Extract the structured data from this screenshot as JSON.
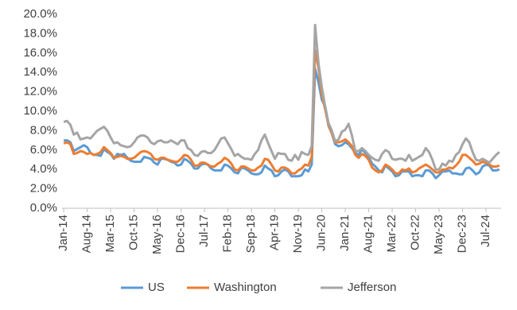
{
  "chart_data": {
    "type": "line",
    "categories": [
      "Jan-14",
      null,
      null,
      null,
      null,
      null,
      null,
      "Aug-14",
      null,
      null,
      null,
      null,
      null,
      null,
      "Mar-15",
      null,
      null,
      null,
      null,
      null,
      null,
      "Oct-15",
      null,
      null,
      null,
      null,
      null,
      null,
      "May-16",
      null,
      null,
      null,
      null,
      null,
      null,
      "Dec-16",
      null,
      null,
      null,
      null,
      null,
      null,
      "Jul-17",
      null,
      null,
      null,
      null,
      null,
      null,
      "Feb-18",
      null,
      null,
      null,
      null,
      null,
      null,
      "Sep-18",
      null,
      null,
      null,
      null,
      null,
      null,
      "Apr-19",
      null,
      null,
      null,
      null,
      null,
      null,
      "Nov-19",
      null,
      null,
      null,
      null,
      null,
      null,
      "Jun-20",
      null,
      null,
      null,
      null,
      null,
      null,
      "Jan-21",
      null,
      null,
      null,
      null,
      null,
      null,
      "Aug-21",
      null,
      null,
      null,
      null,
      null,
      null,
      "Mar-22",
      null,
      null,
      null,
      null,
      null,
      null,
      "Oct-22",
      null,
      null,
      null,
      null,
      null,
      null,
      "May-23",
      null,
      null,
      null,
      null,
      null,
      null,
      "Dec-23",
      null,
      null,
      null,
      null,
      null,
      null,
      "Jul-24",
      null,
      null,
      null,
      null
    ],
    "series": [
      {
        "name": "US",
        "color": "#5b9bd5",
        "values": [
          7.0,
          7.0,
          6.8,
          5.9,
          6.1,
          6.3,
          6.5,
          6.3,
          5.7,
          5.5,
          5.5,
          5.4,
          6.1,
          5.8,
          5.6,
          5.1,
          5.6,
          5.5,
          5.6,
          5.2,
          4.9,
          4.8,
          4.8,
          4.8,
          5.3,
          5.2,
          5.1,
          4.7,
          4.5,
          5.1,
          5.1,
          5.0,
          4.8,
          4.7,
          4.4,
          4.5,
          5.1,
          4.9,
          4.6,
          4.1,
          4.1,
          4.5,
          4.6,
          4.5,
          4.1,
          3.9,
          3.9,
          3.9,
          4.5,
          4.4,
          4.1,
          3.7,
          3.6,
          4.2,
          4.1,
          3.9,
          3.6,
          3.5,
          3.5,
          3.7,
          4.4,
          4.1,
          3.9,
          3.3,
          3.4,
          3.8,
          4.0,
          3.8,
          3.3,
          3.3,
          3.3,
          3.4,
          4.0,
          3.8,
          4.5,
          14.4,
          13.0,
          11.2,
          10.5,
          8.5,
          7.7,
          6.6,
          6.4,
          6.5,
          6.8,
          6.6,
          6.2,
          5.7,
          5.5,
          6.1,
          5.7,
          5.3,
          4.6,
          4.3,
          3.9,
          3.7,
          4.4,
          4.1,
          3.8,
          3.3,
          3.4,
          3.8,
          3.8,
          3.8,
          3.3,
          3.4,
          3.4,
          3.3,
          3.9,
          3.9,
          3.6,
          3.1,
          3.4,
          3.8,
          3.8,
          3.9,
          3.6,
          3.6,
          3.5,
          3.5,
          4.1,
          4.2,
          3.9,
          3.5,
          3.7,
          4.3,
          4.5,
          4.4,
          3.9,
          3.9,
          4.0
        ]
      },
      {
        "name": "Washington",
        "color": "#ed7d31",
        "values": [
          6.7,
          6.8,
          6.6,
          5.6,
          5.7,
          5.9,
          5.8,
          5.6,
          5.7,
          5.5,
          5.6,
          5.8,
          6.3,
          6.0,
          5.7,
          5.2,
          5.3,
          5.4,
          5.3,
          5.1,
          5.1,
          5.2,
          5.5,
          5.8,
          5.9,
          5.8,
          5.6,
          5.1,
          5.0,
          5.2,
          5.2,
          5.0,
          4.9,
          4.8,
          4.8,
          5.1,
          5.5,
          5.4,
          5.0,
          4.4,
          4.4,
          4.7,
          4.7,
          4.5,
          4.3,
          4.3,
          4.6,
          4.8,
          5.2,
          5.0,
          4.6,
          4.0,
          3.9,
          4.3,
          4.3,
          4.1,
          3.9,
          3.9,
          4.2,
          4.4,
          5.1,
          5.0,
          4.5,
          3.9,
          3.8,
          4.2,
          4.2,
          4.0,
          3.6,
          3.6,
          3.9,
          4.1,
          4.5,
          4.4,
          5.3,
          16.3,
          14.5,
          11.8,
          10.2,
          8.6,
          7.7,
          6.8,
          6.8,
          6.9,
          7.1,
          6.8,
          6.4,
          5.5,
          5.2,
          5.6,
          5.4,
          5.0,
          4.2,
          3.9,
          3.7,
          3.9,
          4.5,
          4.3,
          4.0,
          3.6,
          3.6,
          4.0,
          3.9,
          4.1,
          3.7,
          3.8,
          4.1,
          4.3,
          4.5,
          4.3,
          4.0,
          3.7,
          3.7,
          4.0,
          4.0,
          4.2,
          4.1,
          4.4,
          4.8,
          5.5,
          5.5,
          5.2,
          4.9,
          4.5,
          4.6,
          4.8,
          4.7,
          4.5,
          4.3,
          4.3,
          4.4
        ]
      },
      {
        "name": "Jefferson",
        "color": "#a5a5a5",
        "values": [
          8.9,
          9.0,
          8.6,
          7.6,
          7.8,
          7.1,
          7.2,
          7.3,
          7.2,
          7.6,
          8.0,
          8.2,
          8.4,
          8.0,
          7.3,
          6.7,
          6.8,
          6.5,
          6.4,
          6.3,
          6.4,
          6.8,
          7.3,
          7.5,
          7.5,
          7.3,
          6.8,
          6.6,
          6.9,
          7.0,
          6.8,
          6.8,
          7.0,
          6.8,
          6.6,
          7.0,
          7.0,
          6.2,
          6.0,
          5.5,
          5.4,
          5.8,
          5.9,
          5.7,
          5.7,
          6.0,
          6.6,
          7.2,
          7.3,
          6.7,
          6.1,
          5.4,
          5.6,
          5.3,
          5.1,
          5.1,
          5.0,
          5.6,
          6.0,
          7.0,
          7.6,
          6.7,
          5.9,
          5.1,
          5.7,
          5.6,
          5.6,
          5.0,
          4.9,
          5.5,
          5.0,
          5.8,
          5.6,
          5.5,
          6.4,
          18.9,
          15.0,
          12.5,
          10.5,
          8.8,
          8.0,
          6.9,
          7.1,
          7.9,
          8.1,
          8.7,
          7.5,
          5.9,
          5.9,
          6.2,
          5.9,
          5.5,
          5.2,
          5.0,
          4.9,
          5.6,
          6.0,
          5.8,
          5.1,
          5.0,
          5.1,
          5.1,
          4.9,
          5.5,
          4.9,
          5.1,
          5.3,
          5.5,
          6.2,
          5.8,
          5.0,
          4.0,
          4.0,
          4.6,
          4.4,
          4.9,
          4.8,
          5.5,
          5.8,
          6.6,
          7.2,
          6.8,
          5.8,
          5.0,
          4.9,
          5.1,
          4.9,
          4.7,
          5.1,
          5.5,
          5.8
        ]
      }
    ],
    "ylim": [
      0,
      20
    ],
    "yticks": [
      {
        "value": 0,
        "label": "0.0%"
      },
      {
        "value": 2,
        "label": "2.0%"
      },
      {
        "value": 4,
        "label": "4.0%"
      },
      {
        "value": 6,
        "label": "6.0%"
      },
      {
        "value": 8,
        "label": "8.0%"
      },
      {
        "value": 10,
        "label": "10.0%"
      },
      {
        "value": 12,
        "label": "12.0%"
      },
      {
        "value": 14,
        "label": "14.0%"
      },
      {
        "value": 16,
        "label": "16.0%"
      },
      {
        "value": 18,
        "label": "18.0%"
      },
      {
        "value": 20,
        "label": "20.0%"
      }
    ],
    "grid": false,
    "legend": "bottom"
  }
}
